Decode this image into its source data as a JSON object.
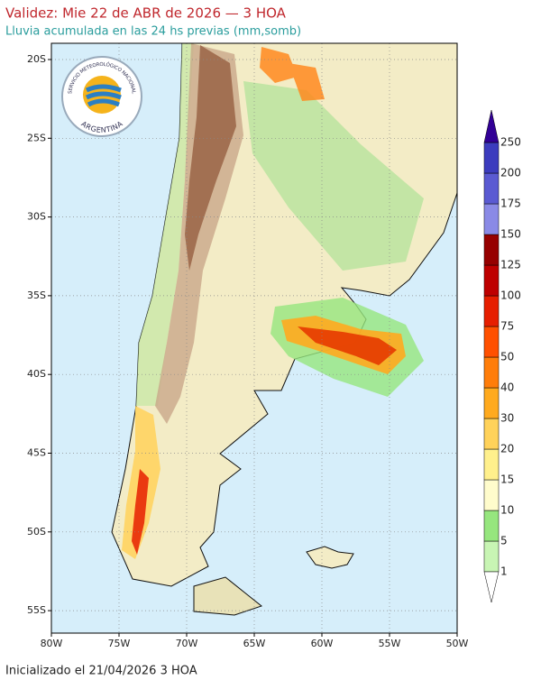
{
  "header": {
    "title": "Validez: Mie 22 de ABR de 2026 — 3 HOA",
    "subtitle": "Lluvia acumulada en las 24 hs previas (mm,somb)"
  },
  "logo": {
    "top": "SERVICIO METEOROLÓGICO NACIONAL",
    "bottom": "ARGENTINA"
  },
  "map": {
    "lat_labels": [
      "20S",
      "25S",
      "30S",
      "35S",
      "40S",
      "45S",
      "50S",
      "55S"
    ],
    "lon_labels": [
      "80W",
      "75W",
      "70W",
      "65W",
      "60W",
      "55W",
      "50W"
    ]
  },
  "legend": {
    "levels": [
      1,
      5,
      10,
      15,
      20,
      30,
      40,
      50,
      75,
      100,
      125,
      150,
      175,
      200,
      250
    ],
    "colors": [
      "#c8f5b4",
      "#96e67e",
      "#fffccc",
      "#fff08c",
      "#ffd25a",
      "#ffaa1e",
      "#ff7d0a",
      "#ff5000",
      "#e61e00",
      "#be0000",
      "#960000",
      "#8a8ae6",
      "#5a5ad2",
      "#3c3cbe",
      "#320096"
    ]
  },
  "footer": "Inicializado el 21/04/2026 3 HOA"
}
